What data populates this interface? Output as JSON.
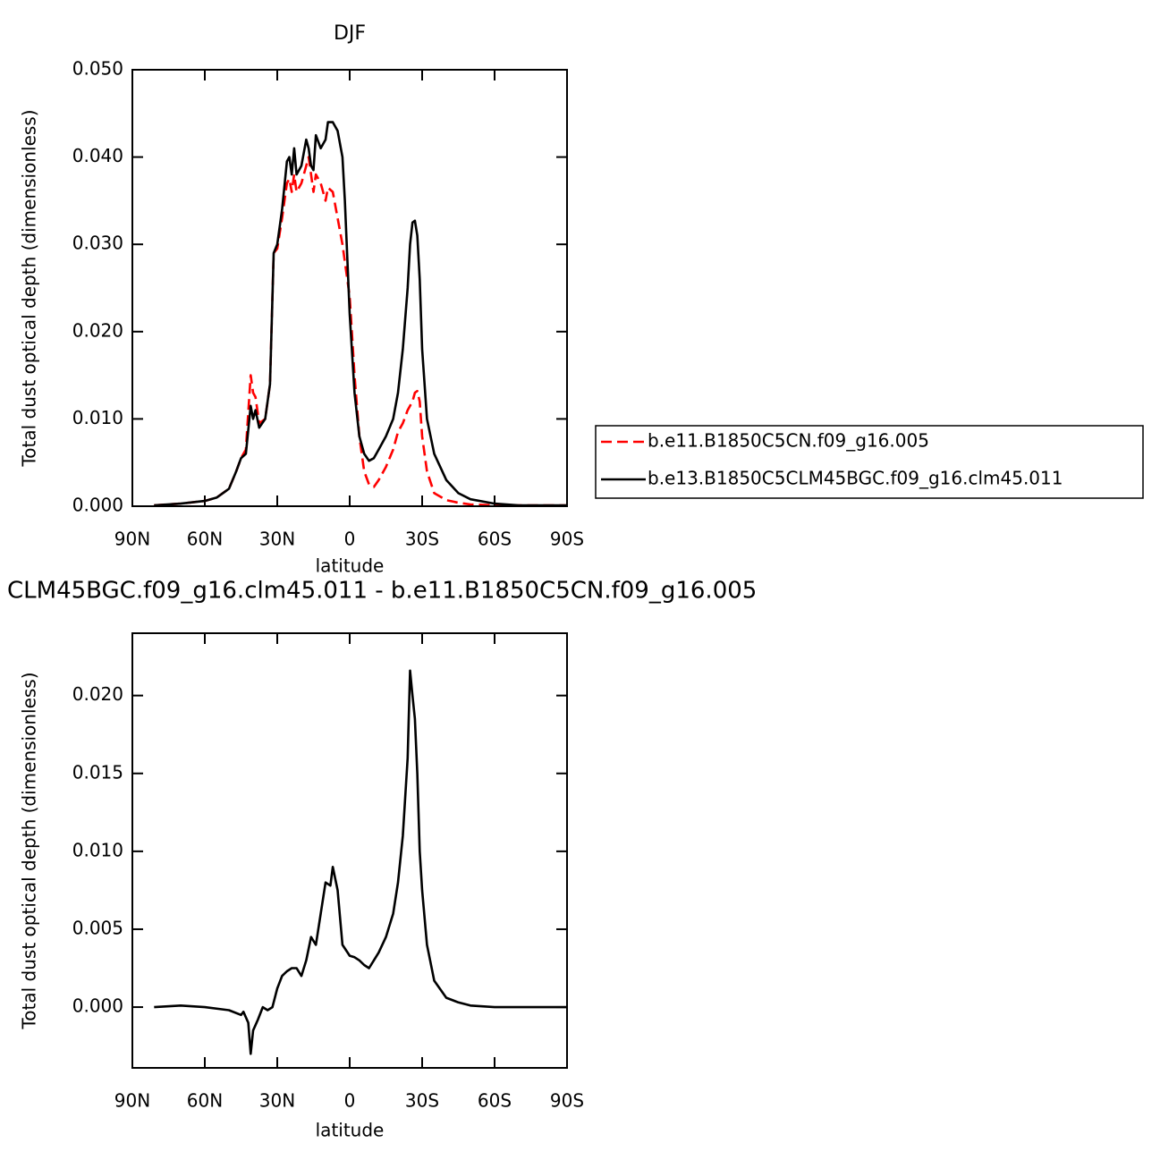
{
  "chart_data": [
    {
      "type": "line",
      "title": "DJF",
      "x_label": "latitude",
      "y_label": "Total dust optical depth (dimensionless)",
      "x": [
        81,
        70,
        60,
        55,
        50,
        47,
        45,
        43,
        41,
        40,
        39,
        37.5,
        35,
        33,
        31.5,
        30,
        28,
        26,
        25,
        24,
        23,
        22,
        20,
        18,
        17,
        16,
        15,
        14,
        12,
        10,
        9,
        7,
        5,
        3,
        2,
        0,
        -2,
        -4,
        -6,
        -8,
        -10,
        -12,
        -15,
        -18,
        -20,
        -22,
        -24,
        -25,
        -26,
        -27,
        -28,
        -29,
        -30,
        -32,
        -35,
        -40,
        -45,
        -50,
        -60,
        -70,
        -80,
        -90
      ],
      "series": [
        {
          "name": "b.e11.B1850C5CN.f09_g16.005",
          "color": "#ff0000",
          "linestyle": "dashed",
          "values": [
            0.0001,
            0.0003,
            0.0006,
            0.001,
            0.002,
            0.004,
            0.0055,
            0.0065,
            0.015,
            0.013,
            0.0125,
            0.0095,
            0.01,
            0.014,
            0.029,
            0.0295,
            0.033,
            0.037,
            0.0375,
            0.036,
            0.038,
            0.036,
            0.037,
            0.039,
            0.04,
            0.038,
            0.036,
            0.038,
            0.037,
            0.035,
            0.0365,
            0.036,
            0.033,
            0.03,
            0.028,
            0.024,
            0.015,
            0.008,
            0.004,
            0.0025,
            0.0022,
            0.003,
            0.0045,
            0.0065,
            0.0085,
            0.0095,
            0.011,
            0.0115,
            0.012,
            0.013,
            0.0132,
            0.012,
            0.008,
            0.004,
            0.0015,
            0.0007,
            0.0004,
            0.0002,
            0.0001,
            0.0001,
            0.0001,
            0.0001
          ]
        },
        {
          "name": "b.e13.B1850C5CLM45BGC.f09_g16.clm45.011",
          "color": "#000000",
          "linestyle": "solid",
          "values": [
            0.0001,
            0.0003,
            0.0006,
            0.001,
            0.002,
            0.004,
            0.0055,
            0.006,
            0.0115,
            0.01,
            0.011,
            0.009,
            0.01,
            0.014,
            0.029,
            0.03,
            0.034,
            0.0395,
            0.04,
            0.038,
            0.041,
            0.038,
            0.039,
            0.042,
            0.041,
            0.039,
            0.0385,
            0.0425,
            0.041,
            0.042,
            0.044,
            0.044,
            0.043,
            0.04,
            0.035,
            0.022,
            0.013,
            0.008,
            0.006,
            0.0052,
            0.0055,
            0.0065,
            0.008,
            0.01,
            0.013,
            0.018,
            0.025,
            0.03,
            0.0325,
            0.0327,
            0.031,
            0.026,
            0.018,
            0.01,
            0.006,
            0.003,
            0.0015,
            0.0008,
            0.0003,
            0.0001,
            0.0001,
            0.0001
          ]
        }
      ],
      "xlim": [
        90,
        -90
      ],
      "xticks": [
        {
          "value": 90,
          "label": "90N"
        },
        {
          "value": 60,
          "label": "60N"
        },
        {
          "value": 30,
          "label": "30N"
        },
        0,
        {
          "value": -30,
          "label": "30S"
        },
        {
          "value": -60,
          "label": "60S"
        },
        {
          "value": -90,
          "label": "90S"
        }
      ],
      "ylim": [
        0,
        0.05
      ],
      "yticks": [
        {
          "value": 0,
          "label": "0.000"
        },
        {
          "value": 0.01,
          "label": "0.010"
        },
        {
          "value": 0.02,
          "label": "0.020"
        },
        {
          "value": 0.03,
          "label": "0.030"
        },
        {
          "value": 0.04,
          "label": "0.040"
        },
        {
          "value": 0.05,
          "label": "0.050"
        }
      ],
      "legend": "right"
    },
    {
      "type": "line",
      "title": "CLM45BGC.f09_g16.clm45.011 - b.e11.B1850C5CN.f09_g16.005",
      "x_label": "latitude",
      "y_label": "Total dust optical depth (dimensionless)",
      "x": [
        81,
        70,
        60,
        50,
        45,
        44,
        42,
        41,
        40,
        38,
        36,
        34,
        32,
        30,
        28,
        26,
        24,
        22,
        20,
        18,
        16,
        14,
        12,
        10,
        8,
        7,
        5,
        3,
        0,
        -2,
        -4,
        -6,
        -8,
        -10,
        -12,
        -15,
        -18,
        -20,
        -22,
        -24,
        -25,
        -26,
        -27,
        -28,
        -29,
        -30,
        -32,
        -35,
        -40,
        -45,
        -50,
        -60,
        -70,
        -90
      ],
      "series": [
        {
          "color": "#000000",
          "linestyle": "solid",
          "values": [
            0,
            0.0001,
            0,
            -0.0002,
            -0.0005,
            -0.0003,
            -0.001,
            -0.003,
            -0.0015,
            -0.0008,
            0,
            -0.0002,
            0,
            0.0012,
            0.002,
            0.0023,
            0.0025,
            0.0025,
            0.002,
            0.003,
            0.0045,
            0.004,
            0.006,
            0.008,
            0.0078,
            0.009,
            0.0075,
            0.004,
            0.0033,
            0.0032,
            0.003,
            0.0027,
            0.0025,
            0.003,
            0.0035,
            0.0045,
            0.006,
            0.008,
            0.011,
            0.016,
            0.0216,
            0.02,
            0.0185,
            0.015,
            0.01,
            0.0075,
            0.004,
            0.0017,
            0.0006,
            0.0003,
            0.0001,
            0,
            0,
            0
          ]
        }
      ],
      "xlim": [
        90,
        -90
      ],
      "xticks": [
        {
          "value": 90,
          "label": "90N"
        },
        {
          "value": 60,
          "label": "60N"
        },
        {
          "value": 30,
          "label": "30N"
        },
        0,
        {
          "value": -30,
          "label": "30S"
        },
        {
          "value": -60,
          "label": "60S"
        },
        {
          "value": -90,
          "label": "90S"
        }
      ],
      "ylim": [
        -0.0039,
        0.024
      ],
      "yticks": [
        {
          "value": 0,
          "label": "0.000"
        },
        {
          "value": 0.005,
          "label": "0.005"
        },
        {
          "value": 0.01,
          "label": "0.010"
        },
        {
          "value": 0.015,
          "label": "0.015"
        },
        {
          "value": 0.02,
          "label": "0.020"
        }
      ]
    }
  ]
}
